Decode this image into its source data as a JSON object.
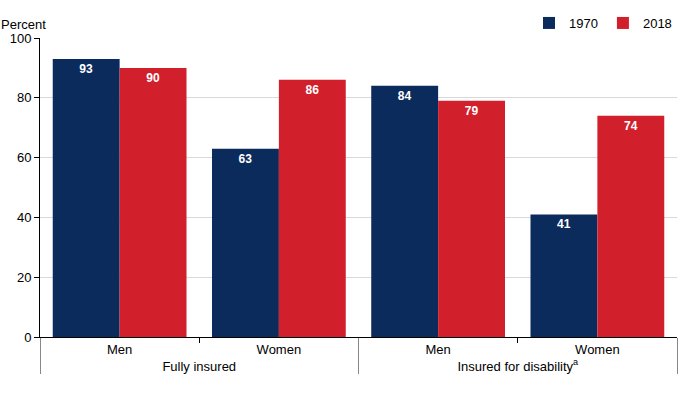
{
  "chart_data": {
    "type": "bar",
    "y_label": "Percent",
    "categories": [
      "Men",
      "Women",
      "Men",
      "Women"
    ],
    "groups": [
      "Fully insured",
      "Fully insured",
      "Insured for disability",
      "Insured for disability"
    ],
    "group_footnote": {
      "Insured for disability": "a"
    },
    "series": [
      {
        "name": "1970",
        "color": "#0b2b5c",
        "values": [
          93,
          63,
          84,
          41
        ]
      },
      {
        "name": "2018",
        "color": "#d21f2c",
        "values": [
          90,
          86,
          79,
          74
        ]
      }
    ],
    "ylim": [
      0,
      100
    ],
    "yticks": [
      0,
      20,
      40,
      60,
      80,
      100
    ],
    "grid": true,
    "legend": "top-right",
    "data_labels": true
  }
}
